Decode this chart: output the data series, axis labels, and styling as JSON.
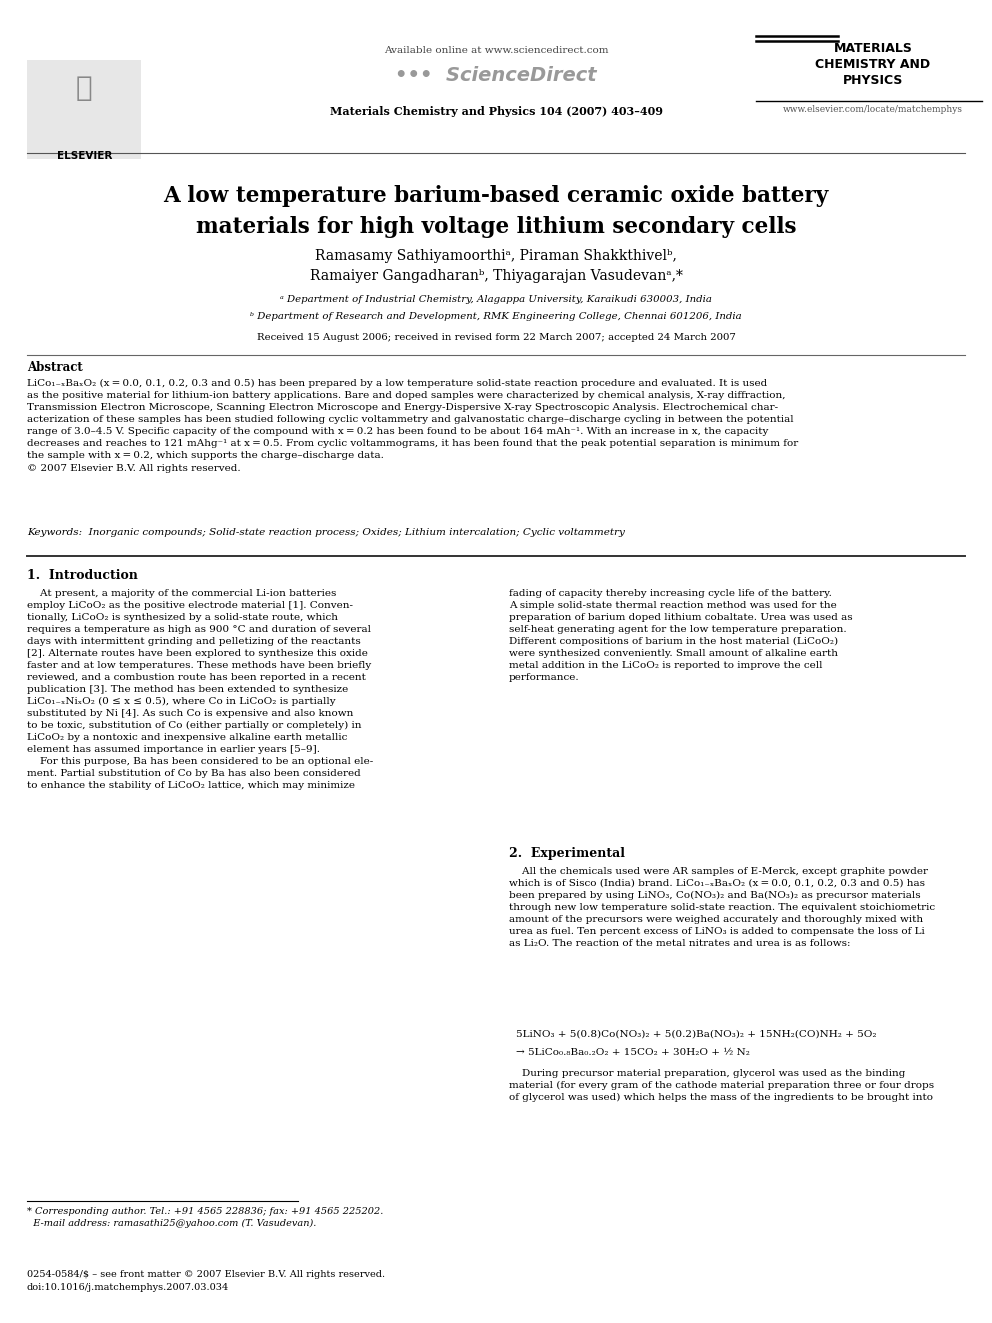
{
  "page_width": 9.92,
  "page_height": 13.23,
  "bg_color": "#ffffff",
  "header": {
    "available_online": "Available online at www.sciencedirect.com",
    "journal_name": "Materials Chemistry and Physics 104 (2007) 403–409",
    "journal_abbrev": "MATERIALS\nCHEMISTRY AND\nPHYSICS",
    "website": "www.elsevier.com/locate/matchemphys"
  },
  "title": "A low temperature barium-based ceramic oxide battery\nmaterials for high voltage lithium secondary cells",
  "authors_line1": "Ramasamy Sathiyamoorthiᵃ, Piraman Shakkthivelᵇ,",
  "authors_line2": "Ramaiyer Gangadharanᵇ, Thiyagarajan Vasudevanᵃ,*",
  "affil_a": "ᵃ Department of Industrial Chemistry, Alagappa University, Karaikudi 630003, India",
  "affil_b": "ᵇ Department of Research and Development, RMK Engineering College, Chennai 601206, India",
  "received": "Received 15 August 2006; received in revised form 22 March 2007; accepted 24 March 2007",
  "abstract_title": "Abstract",
  "abstract_text": "LiCo₁₋ₓBaₓO₂ (x = 0.0, 0.1, 0.2, 0.3 and 0.5) has been prepared by a low temperature solid-state reaction procedure and evaluated. It is used\nas the positive material for lithium-ion battery applications. Bare and doped samples were characterized by chemical analysis, X-ray diffraction,\nTransmission Electron Microscope, Scanning Electron Microscope and Energy-Dispersive X-ray Spectroscopic Analysis. Electrochemical char-\nacterization of these samples has been studied following cyclic voltammetry and galvanostatic charge–discharge cycling in between the potential\nrange of 3.0–4.5 V. Specific capacity of the compound with x = 0.2 has been found to be about 164 mAh⁻¹. With an increase in x, the capacity\ndecreases and reaches to 121 mAhg⁻¹ at x = 0.5. From cyclic voltammograms, it has been found that the peak potential separation is minimum for\nthe sample with x = 0.2, which supports the charge–discharge data.\n© 2007 Elsevier B.V. All rights reserved.",
  "keywords": "Keywords:  Inorganic compounds; Solid-state reaction process; Oxides; Lithium intercalation; Cyclic voltammetry",
  "section1_title": "1.  Introduction",
  "section1_left": "    At present, a majority of the commercial Li-ion batteries\nemploy LiCoO₂ as the positive electrode material [1]. Conven-\ntionally, LiCoO₂ is synthesized by a solid-state route, which\nrequires a temperature as high as 900 °C and duration of several\ndays with intermittent grinding and pelletizing of the reactants\n[2]. Alternate routes have been explored to synthesize this oxide\nfaster and at low temperatures. These methods have been briefly\nreviewed, and a combustion route has been reported in a recent\npublication [3]. The method has been extended to synthesize\nLiCo₁₋ₓNiₓO₂ (0 ≤ x ≤ 0.5), where Co in LiCoO₂ is partially\nsubstituted by Ni [4]. As such Co is expensive and also known\nto be toxic, substitution of Co (either partially or completely) in\nLiCoO₂ by a nontoxic and inexpensive alkaline earth metallic\nelement has assumed importance in earlier years [5–9].\n    For this purpose, Ba has been considered to be an optional ele-\nment. Partial substitution of Co by Ba has also been considered\nto enhance the stability of LiCoO₂ lattice, which may minimize",
  "section1_right": "fading of capacity thereby increasing cycle life of the battery.\nA simple solid-state thermal reaction method was used for the\npreparation of barium doped lithium cobaltate. Urea was used as\nself-heat generating agent for the low temperature preparation.\nDifferent compositions of barium in the host material (LiCoO₂)\nwere synthesized conveniently. Small amount of alkaline earth\nmetal addition in the LiCoO₂ is reported to improve the cell\nperformance.",
  "section2_title": "2.  Experimental",
  "section2_right": "    All the chemicals used were AR samples of E-Merck, except graphite powder\nwhich is of Sisco (India) brand. LiCo₁₋ₓBaₓO₂ (x = 0.0, 0.1, 0.2, 0.3 and 0.5) has\nbeen prepared by using LiNO₃, Co(NO₃)₂ and Ba(NO₃)₂ as precursor materials\nthrough new low temperature solid-state reaction. The equivalent stoichiometric\namount of the precursors were weighed accurately and thoroughly mixed with\nurea as fuel. Ten percent excess of LiNO₃ is added to compensate the loss of Li\nas Li₂O. The reaction of the metal nitrates and urea is as follows:",
  "equation1": "5LiNO₃ + 5(0.8)Co(NO₃)₂ + 5(0.2)Ba(NO₃)₂ + 15NH₂(CO)NH₂ + 5O₂",
  "equation2": "→ 5LiCo₀.₈Ba₀.₂O₂ + 15CO₂ + 30H₂O + ½ N₂",
  "section2_right2": "    During precursor material preparation, glycerol was used as the binding\nmaterial (for every gram of the cathode material preparation three or four drops\nof glycerol was used) which helps the mass of the ingredients to be brought into",
  "footnote_star": "* Corresponding author. Tel.: +91 4565 228836; fax: +91 4565 225202.\n  E-mail address: ramasathi25@yahoo.com (T. Vasudevan).",
  "footer": "0254-0584/$ – see front matter © 2007 Elsevier B.V. All rights reserved.\ndoi:10.1016/j.matchemphys.2007.03.034"
}
